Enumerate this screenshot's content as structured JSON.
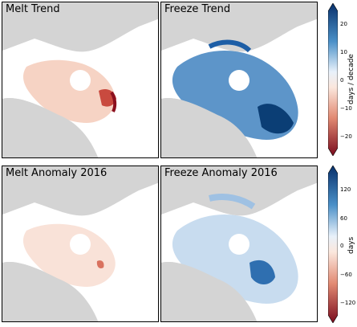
{
  "panels": [
    {
      "title": "Melt Trend",
      "scheme": "red"
    },
    {
      "title": "Freeze Trend",
      "scheme": "blue"
    },
    {
      "title": "Melt Anomaly 2016",
      "scheme": "red-light"
    },
    {
      "title": "Freeze Anomaly 2016",
      "scheme": "blue-light"
    }
  ],
  "colorbar_top": {
    "label": "days / decade",
    "ticks": [
      "20",
      "10",
      "0",
      "−10",
      "−20"
    ]
  },
  "colorbar_bottom": {
    "label": "days",
    "ticks": [
      "120",
      "60",
      "0",
      "−60",
      "−120"
    ]
  },
  "colors": {
    "land": "#d4d4d4",
    "ocean": "#ffffff",
    "dark_red": "#8b0f1e",
    "light_red": "#f3c4b0",
    "dark_blue": "#0b3e75",
    "light_blue": "#c3d9ed"
  }
}
